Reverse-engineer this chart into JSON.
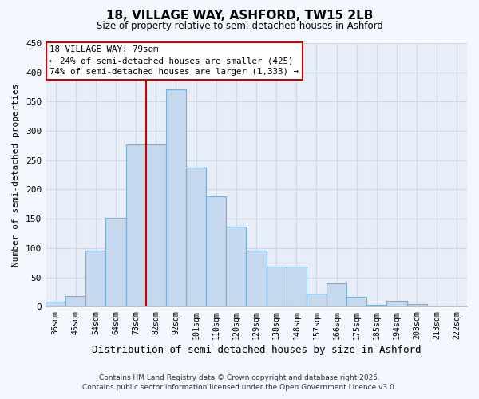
{
  "title": "18, VILLAGE WAY, ASHFORD, TW15 2LB",
  "subtitle": "Size of property relative to semi-detached houses in Ashford",
  "xlabel": "Distribution of semi-detached houses by size in Ashford",
  "ylabel": "Number of semi-detached properties",
  "bar_color": "#c5d8ee",
  "bar_edge_color": "#7aafd4",
  "background_color": "#e8eef8",
  "grid_color": "#d0d8e8",
  "fig_background": "#f5f7ff",
  "categories": [
    "36sqm",
    "45sqm",
    "54sqm",
    "64sqm",
    "73sqm",
    "82sqm",
    "92sqm",
    "101sqm",
    "110sqm",
    "120sqm",
    "129sqm",
    "138sqm",
    "148sqm",
    "157sqm",
    "166sqm",
    "175sqm",
    "185sqm",
    "194sqm",
    "203sqm",
    "213sqm",
    "222sqm"
  ],
  "values": [
    8,
    18,
    96,
    152,
    277,
    277,
    371,
    238,
    188,
    136,
    96,
    68,
    68,
    22,
    40,
    17,
    3,
    10,
    5,
    2,
    2
  ],
  "ylim": [
    0,
    450
  ],
  "yticks": [
    0,
    50,
    100,
    150,
    200,
    250,
    300,
    350,
    400,
    450
  ],
  "property_bin_index": 5,
  "property_label": "18 VILLAGE WAY: 79sqm",
  "annotation_line1": "← 24% of semi-detached houses are smaller (425)",
  "annotation_line2": "74% of semi-detached houses are larger (1,333) →",
  "vline_color": "#cc0000",
  "annotation_box_color": "#ffffff",
  "annotation_box_edge": "#cc0000",
  "footer_line1": "Contains HM Land Registry data © Crown copyright and database right 2025.",
  "footer_line2": "Contains public sector information licensed under the Open Government Licence v3.0."
}
